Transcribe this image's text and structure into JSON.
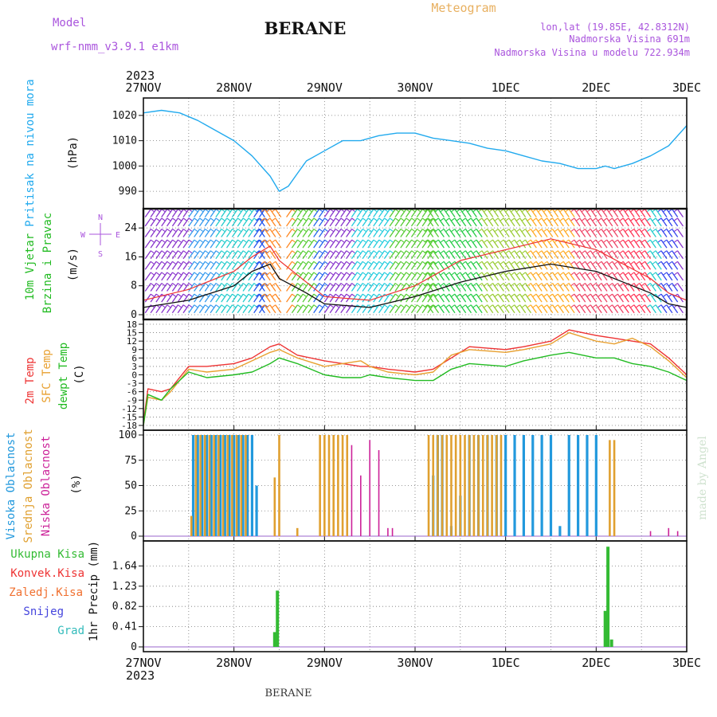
{
  "header": {
    "model_label": "Model",
    "model_name": "wrf-nmm_v3.9.1  e1km",
    "station": "BERANE",
    "product": "Meteogram",
    "coords": "lon,lat (19.85E, 42.8312N)",
    "elevation": "Nadmorska Visina 691m",
    "model_elevation": "Nadmorska Visina u modelu 722.934m",
    "year": "2023",
    "footer_station": "BERANE",
    "credit": "made by Angel"
  },
  "colors": {
    "pressure": "#22aaee",
    "wind_speed": "#111111",
    "wind_gust": "#ee3333",
    "temp_2m": "#ee3333",
    "temp_sfc": "#e8a030",
    "dewpoint": "#22bb22",
    "cloud_high": "#2299dd",
    "cloud_mid": "#e0a030",
    "cloud_low": "#cc2299",
    "precip_total": "#33bb33",
    "precip_conv": "#ee3333",
    "precip_snow_ice": "#f07030",
    "precip_snow": "#4444dd",
    "precip_hail": "#33bbbb"
  },
  "chart_data": [
    {
      "type": "line",
      "panel": "pressure",
      "ylabel": [
        "Pritisak na nivou mora",
        "(hPa)"
      ],
      "x_ticks": [
        "27NOV",
        "28NOV",
        "29NOV",
        "30NOV",
        "1DEC",
        "2DEC",
        "3DEC"
      ],
      "ylim": [
        985,
        1025
      ],
      "y_ticks": [
        990,
        1000,
        1010,
        1020
      ],
      "grid": true,
      "series": [
        {
          "x": [
            0,
            0.2,
            0.4,
            0.6,
            0.8,
            1.0,
            1.2,
            1.4,
            1.5,
            1.6,
            1.7,
            1.8,
            2.0,
            2.2,
            2.4,
            2.6,
            2.8,
            3.0,
            3.2,
            3.4,
            3.6,
            3.8,
            4.0,
            4.2,
            4.4,
            4.6,
            4.8,
            5.0,
            5.1,
            5.2,
            5.4,
            5.6,
            5.8,
            6.0
          ],
          "values": [
            1021,
            1022,
            1021,
            1018,
            1014,
            1010,
            1004,
            996,
            990,
            992,
            997,
            1002,
            1006,
            1010,
            1010,
            1012,
            1013,
            1013,
            1011,
            1010,
            1009,
            1007,
            1006,
            1004,
            1002,
            1001,
            999,
            999,
            1000,
            999,
            1001,
            1004,
            1008,
            1016
          ]
        }
      ]
    },
    {
      "type": "line",
      "panel": "wind",
      "ylabel": [
        "10m Vjetar",
        "Brzina i Pravac",
        "(m/s)"
      ],
      "compass": [
        "N",
        "E",
        "W",
        "S"
      ],
      "ylim": [
        0,
        28
      ],
      "y_ticks": [
        0,
        8,
        16,
        24
      ],
      "grid": true,
      "series": [
        {
          "name": "speed",
          "x": [
            0,
            0.5,
            1.0,
            1.2,
            1.4,
            1.5,
            1.8,
            2.0,
            2.5,
            3.0,
            3.5,
            4.0,
            4.5,
            5.0,
            5.3,
            5.6,
            5.8,
            6.0
          ],
          "values": [
            2,
            4,
            8,
            12,
            14,
            10,
            6,
            3,
            2,
            5,
            9,
            12,
            14,
            12,
            9,
            6,
            3,
            2
          ]
        },
        {
          "name": "gust",
          "x": [
            0,
            0.5,
            1.0,
            1.2,
            1.4,
            1.5,
            1.8,
            2.0,
            2.5,
            3.0,
            3.5,
            4.0,
            4.5,
            5.0,
            5.3,
            5.6,
            5.8,
            6.0
          ],
          "values": [
            4,
            7,
            12,
            16,
            19,
            15,
            9,
            5,
            4,
            8,
            15,
            18,
            21,
            18,
            14,
            10,
            6,
            4
          ]
        }
      ]
    },
    {
      "type": "line",
      "panel": "temperature",
      "ylabel": [
        "2m Temp",
        "SFC Temp",
        "dewpt Temp",
        "(C)"
      ],
      "ylim": [
        -18,
        18
      ],
      "y_ticks": [
        -18,
        -15,
        -12,
        -9,
        -6,
        -3,
        0,
        3,
        6,
        9,
        12,
        15,
        18
      ],
      "grid": true,
      "series": [
        {
          "name": "2m Temp",
          "x": [
            0,
            0.05,
            0.2,
            0.3,
            0.5,
            0.7,
            1.0,
            1.2,
            1.4,
            1.5,
            1.7,
            2.0,
            2.2,
            2.4,
            2.5,
            2.7,
            3.0,
            3.2,
            3.4,
            3.6,
            4.0,
            4.2,
            4.5,
            4.7,
            5.0,
            5.2,
            5.4,
            5.6,
            5.8,
            6.0
          ],
          "values": [
            -17,
            -5,
            -6,
            -5,
            3,
            3,
            4,
            6,
            10,
            11,
            7,
            5,
            4,
            3,
            3,
            2,
            1,
            2,
            6,
            10,
            9,
            10,
            12,
            16,
            14,
            13,
            12,
            11,
            6,
            0
          ]
        },
        {
          "name": "SFC Temp",
          "x": [
            0,
            0.05,
            0.2,
            0.3,
            0.5,
            0.7,
            1.0,
            1.2,
            1.4,
            1.5,
            1.7,
            2.0,
            2.2,
            2.4,
            2.5,
            2.7,
            3.0,
            3.2,
            3.4,
            3.6,
            4.0,
            4.2,
            4.5,
            4.7,
            5.0,
            5.2,
            5.4,
            5.6,
            5.8,
            6.0
          ],
          "values": [
            -18,
            -8,
            -9,
            -6,
            2,
            1,
            2,
            5,
            8,
            9,
            6,
            3,
            4,
            5,
            3,
            1,
            0,
            1,
            7,
            9,
            8,
            9,
            11,
            15,
            12,
            11,
            13,
            10,
            5,
            -1
          ]
        },
        {
          "name": "dewpt Temp",
          "x": [
            0,
            0.05,
            0.2,
            0.3,
            0.5,
            0.7,
            1.0,
            1.2,
            1.4,
            1.5,
            1.7,
            2.0,
            2.2,
            2.4,
            2.5,
            2.7,
            3.0,
            3.2,
            3.4,
            3.6,
            4.0,
            4.2,
            4.5,
            4.7,
            5.0,
            5.2,
            5.4,
            5.6,
            5.8,
            6.0
          ],
          "values": [
            -18,
            -7,
            -9,
            -5,
            1,
            -1,
            0,
            1,
            4,
            6,
            4,
            0,
            -1,
            -1,
            0,
            -1,
            -2,
            -2,
            2,
            4,
            3,
            5,
            7,
            8,
            6,
            6,
            4,
            3,
            1,
            -2
          ]
        }
      ]
    },
    {
      "type": "bar",
      "panel": "clouds",
      "ylabel": [
        "Visoka Oblacnost",
        "Srednja Oblacnost",
        "Niska Oblacnost",
        "(%)"
      ],
      "ylim": [
        0,
        100
      ],
      "y_ticks": [
        0,
        25,
        50,
        75,
        100
      ],
      "grid": true,
      "series": [
        {
          "name": "Visoka Oblacnost",
          "x": [
            0.55,
            0.6,
            0.65,
            0.7,
            0.75,
            0.8,
            0.85,
            0.9,
            0.95,
            1.0,
            1.05,
            1.1,
            1.15,
            1.2,
            1.25,
            3.2,
            3.25,
            3.3,
            3.4,
            3.5,
            3.6,
            3.7,
            3.8,
            3.9,
            4.0,
            4.1,
            4.2,
            4.3,
            4.4,
            4.5,
            4.6,
            4.7,
            4.8,
            4.9,
            5.0
          ],
          "values": [
            100,
            100,
            100,
            100,
            100,
            100,
            100,
            100,
            100,
            100,
            100,
            100,
            100,
            100,
            50,
            60,
            100,
            100,
            10,
            40,
            100,
            100,
            100,
            100,
            100,
            100,
            100,
            100,
            100,
            100,
            10,
            100,
            100,
            100,
            100
          ]
        },
        {
          "name": "Srednja Oblacnost",
          "x": [
            0.53,
            0.58,
            0.63,
            0.68,
            0.73,
            0.78,
            0.83,
            0.88,
            0.93,
            0.98,
            1.03,
            1.08,
            1.13,
            1.45,
            1.5,
            1.7,
            1.95,
            2.0,
            2.05,
            2.1,
            2.15,
            2.2,
            2.25,
            3.15,
            3.2,
            3.25,
            3.3,
            3.35,
            3.4,
            3.45,
            3.5,
            3.55,
            3.6,
            3.65,
            3.7,
            3.75,
            3.8,
            3.85,
            3.9,
            3.95,
            5.15,
            5.2
          ],
          "values": [
            20,
            100,
            100,
            100,
            100,
            100,
            100,
            100,
            100,
            100,
            100,
            100,
            100,
            58,
            100,
            8,
            100,
            100,
            100,
            100,
            100,
            100,
            100,
            100,
            100,
            100,
            100,
            100,
            100,
            100,
            100,
            100,
            100,
            100,
            100,
            100,
            100,
            100,
            100,
            100,
            95,
            95
          ]
        },
        {
          "name": "Niska Oblacnost",
          "x": [
            2.3,
            2.4,
            2.5,
            2.6,
            2.7,
            2.75,
            5.6,
            5.8,
            5.9
          ],
          "values": [
            90,
            60,
            95,
            85,
            8,
            8,
            5,
            8,
            5
          ]
        }
      ]
    },
    {
      "type": "bar",
      "panel": "precipitation",
      "ylabel": [
        "1hr Precip (mm)"
      ],
      "legend": [
        "Ukupna Kisa",
        "Konvek.Kisa",
        "Zaledj.Kisa",
        "Snijeg",
        "Grad"
      ],
      "ylim": [
        0,
        2.05
      ],
      "y_ticks": [
        0,
        0.41,
        0.82,
        1.23,
        1.64
      ],
      "y_tick_labels": [
        "0",
        "0.41",
        "0.82",
        "1.23",
        "1.64"
      ],
      "grid": true,
      "series": [
        {
          "name": "Ukupna Kisa",
          "x": [
            1.45,
            1.48,
            5.1,
            5.13,
            5.17
          ],
          "values": [
            0.3,
            1.14,
            0.73,
            2.03,
            0.15
          ]
        }
      ]
    }
  ]
}
